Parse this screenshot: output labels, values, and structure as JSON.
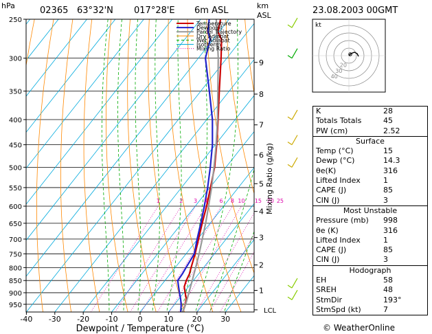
{
  "header": {
    "station": "02365",
    "lat": "63°32'N",
    "lon": "017°28'E",
    "elev": "6m ASL",
    "datetime": "23.08.2003 00GMT",
    "y_unit": "hPa",
    "km_label": "km",
    "asl_label": "ASL"
  },
  "chart_data": {
    "type": "line",
    "xlabel": "Dewpoint / Temperature (°C)",
    "ylabel": "hPa",
    "mixing_axis_label": "Mixing Ratio (g/kg)",
    "xlim": [
      -40,
      40
    ],
    "x_ticks": [
      -40,
      -30,
      -20,
      -10,
      0,
      10,
      20,
      30
    ],
    "pressure_levels": [
      250,
      300,
      350,
      400,
      450,
      500,
      550,
      600,
      650,
      700,
      750,
      800,
      850,
      900,
      950
    ],
    "km_ticks": [
      {
        "label": "1",
        "p": 890
      },
      {
        "label": "2",
        "p": 790
      },
      {
        "label": "3",
        "p": 695
      },
      {
        "label": "4",
        "p": 615
      },
      {
        "label": "5",
        "p": 540
      },
      {
        "label": "6",
        "p": 472
      },
      {
        "label": "7",
        "p": 410
      },
      {
        "label": "8",
        "p": 355
      },
      {
        "label": "9",
        "p": 306
      }
    ],
    "lcl_label": "LCL",
    "lcl_p": 975,
    "mixing_ratio_labels": [
      "1",
      "2",
      "3",
      "4",
      "6",
      "8",
      "10",
      "15",
      "20",
      "25"
    ],
    "mixing_ratio_values": [
      1,
      2,
      3,
      4,
      6,
      8,
      10,
      15,
      20,
      25
    ],
    "legend": [
      "Temperature",
      "Dewpoint",
      "Parcel Trajectory",
      "Dry Adiabat",
      "Wet Adiabat",
      "Isotherm",
      "Mixing Ratio"
    ],
    "series": [
      {
        "name": "Temperature",
        "color": "#cc0000",
        "points": [
          [
            985,
            15
          ],
          [
            950,
            13.8
          ],
          [
            925,
            12.5
          ],
          [
            900,
            10.5
          ],
          [
            875,
            8.5
          ],
          [
            850,
            7.5
          ],
          [
            825,
            6.8
          ],
          [
            800,
            5.6
          ],
          [
            775,
            4.4
          ],
          [
            750,
            3.2
          ],
          [
            700,
            0.3
          ],
          [
            650,
            -2.8
          ],
          [
            600,
            -6
          ],
          [
            550,
            -9.8
          ],
          [
            500,
            -14
          ],
          [
            450,
            -19.5
          ],
          [
            400,
            -26
          ],
          [
            350,
            -33.5
          ],
          [
            300,
            -42
          ],
          [
            275,
            -47
          ],
          [
            265,
            -50.5
          ],
          [
            250,
            -53
          ]
        ]
      },
      {
        "name": "Dewpoint",
        "color": "#2222cc",
        "points": [
          [
            985,
            14.3
          ],
          [
            950,
            12.3
          ],
          [
            925,
            10.5
          ],
          [
            900,
            8.5
          ],
          [
            875,
            6.5
          ],
          [
            850,
            4.5
          ],
          [
            825,
            4.3
          ],
          [
            800,
            3.8
          ],
          [
            775,
            3.4
          ],
          [
            750,
            2.9
          ],
          [
            700,
            -0.2
          ],
          [
            650,
            -3.3
          ],
          [
            600,
            -6.8
          ],
          [
            550,
            -10.8
          ],
          [
            500,
            -15.5
          ],
          [
            450,
            -21
          ],
          [
            400,
            -28
          ],
          [
            350,
            -37
          ],
          [
            300,
            -47.5
          ],
          [
            275,
            -51
          ],
          [
            265,
            -54
          ],
          [
            250,
            -57
          ]
        ]
      },
      {
        "name": "Parcel Trajectory",
        "color": "#999999",
        "points": [
          [
            985,
            15
          ],
          [
            950,
            13.9
          ],
          [
            900,
            11.8
          ],
          [
            850,
            9.6
          ],
          [
            800,
            7.2
          ],
          [
            750,
            4.6
          ],
          [
            700,
            1.6
          ],
          [
            650,
            -1.6
          ],
          [
            600,
            -5.3
          ],
          [
            550,
            -9.4
          ],
          [
            500,
            -14.2
          ],
          [
            450,
            -19.7
          ],
          [
            400,
            -26.2
          ],
          [
            350,
            -34
          ],
          [
            300,
            -43
          ],
          [
            250,
            -54.5
          ]
        ]
      }
    ],
    "wind_barbs_side": "right"
  },
  "hodograph": {
    "unit_label": "kt",
    "rings": [
      "10",
      "20",
      "30",
      "40"
    ]
  },
  "indices": {
    "rows": [
      {
        "k": "K",
        "v": "28"
      },
      {
        "k": "Totals Totals",
        "v": "45"
      },
      {
        "k": "PW (cm)",
        "v": "2.52"
      }
    ]
  },
  "surface": {
    "title": "Surface",
    "rows": [
      {
        "k": "Temp (°C)",
        "v": "15"
      },
      {
        "k": "Dewp (°C)",
        "v": "14.3"
      },
      {
        "k": "θe(K)",
        "v": "316"
      },
      {
        "k": "Lifted Index",
        "v": "1"
      },
      {
        "k": "CAPE (J)",
        "v": "85"
      },
      {
        "k": "CIN (J)",
        "v": "3"
      }
    ]
  },
  "unstable": {
    "title": "Most Unstable",
    "rows": [
      {
        "k": "Pressure (mb)",
        "v": "998"
      },
      {
        "k": "θe (K)",
        "v": "316"
      },
      {
        "k": "Lifted Index",
        "v": "1"
      },
      {
        "k": "CAPE (J)",
        "v": "85"
      },
      {
        "k": "CIN (J)",
        "v": "3"
      }
    ]
  },
  "hodo_table": {
    "title": "Hodograph",
    "rows": [
      {
        "k": "EH",
        "v": "58"
      },
      {
        "k": "SREH",
        "v": "48"
      },
      {
        "k": "StmDir",
        "v": "193°"
      },
      {
        "k": "StmSpd (kt)",
        "v": "7"
      }
    ]
  },
  "copyright": "© WeatherOnline",
  "colors": {
    "temperature": "#cc0000",
    "dewpoint": "#2222cc",
    "parcel": "#999999",
    "dry_adiabat": "#ff8800",
    "wet_adiabat": "#00aa00",
    "isotherm": "#00aadd",
    "mixing_ratio": "#dd00aa"
  }
}
